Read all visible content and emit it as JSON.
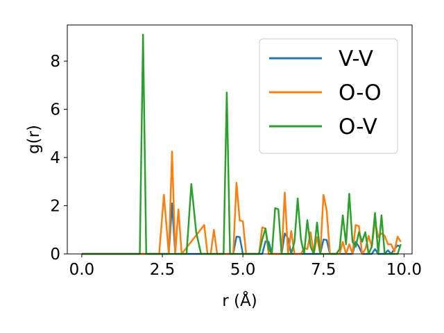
{
  "chart_data": {
    "type": "line",
    "xlabel": "r (Å)",
    "ylabel": "g(r)",
    "xlim": [
      -0.45,
      10.25
    ],
    "ylim": [
      0,
      9.5
    ],
    "xticks": [
      0.0,
      2.5,
      5.0,
      7.5,
      10.0
    ],
    "xtick_labels": [
      "0.0",
      "2.5",
      "5.0",
      "7.5",
      "10.0"
    ],
    "yticks": [
      0,
      2,
      4,
      6,
      8
    ],
    "ytick_labels": [
      "0",
      "2",
      "4",
      "6",
      "8"
    ],
    "grid": false,
    "legend_position": "top-right",
    "series": [
      {
        "name": "V-V",
        "color": "#1f77b4",
        "x": [
          0.0,
          2.7,
          2.8,
          2.9,
          3.0,
          4.7,
          4.8,
          4.9,
          5.0,
          5.6,
          5.7,
          5.8,
          5.9,
          6.2,
          6.3,
          6.4,
          6.5,
          6.6,
          7.4,
          7.5,
          7.6,
          7.7,
          8.4,
          8.5,
          8.6,
          8.7,
          8.8,
          9.0,
          9.1,
          9.2,
          9.4,
          9.5,
          9.6,
          9.7,
          9.8,
          9.9
        ],
        "y": [
          0,
          0,
          2.1,
          0,
          0,
          0,
          0.72,
          0.7,
          0,
          0,
          0.52,
          0.5,
          0,
          0,
          0.85,
          0.65,
          0,
          0,
          0,
          0.6,
          0.58,
          0,
          0,
          0.5,
          0.3,
          0,
          0,
          0,
          0.2,
          0,
          0,
          0.15,
          0,
          0.2,
          0.35,
          0.3
        ]
      },
      {
        "name": "O-O",
        "color": "#ff7f0e",
        "x": [
          0.0,
          2.4,
          2.55,
          2.7,
          2.8,
          2.9,
          3.0,
          3.1,
          3.8,
          3.9,
          4.0,
          4.1,
          4.2,
          4.3,
          4.7,
          4.8,
          4.9,
          5.0,
          5.1,
          5.5,
          5.6,
          5.7,
          5.8,
          6.2,
          6.3,
          6.4,
          6.5,
          6.6,
          6.7,
          6.8,
          6.9,
          7.0,
          7.1,
          7.2,
          7.3,
          7.4,
          7.5,
          7.6,
          7.7,
          8.0,
          8.1,
          8.2,
          8.3,
          8.4,
          8.5,
          8.6,
          8.7,
          8.8,
          8.9,
          9.0,
          9.1,
          9.2,
          9.3,
          9.4,
          9.5,
          9.6,
          9.7,
          9.8,
          9.9
        ],
        "y": [
          0,
          0,
          2.45,
          0,
          4.25,
          0,
          1.85,
          0,
          1.2,
          0,
          0,
          1.0,
          0,
          0,
          0,
          2.95,
          1.4,
          1.35,
          0,
          0,
          1.1,
          1.05,
          0,
          0,
          2.55,
          0,
          0.95,
          0,
          0,
          0,
          0.25,
          0.2,
          0.9,
          0,
          0.7,
          0,
          2.45,
          1.8,
          0,
          0,
          0.5,
          0,
          0.4,
          0,
          1.2,
          1.15,
          0,
          0.2,
          0.75,
          0.3,
          1.35,
          0.7,
          0.85,
          0.75,
          0.4,
          0.4,
          0.1,
          0.72,
          0.5
        ]
      },
      {
        "name": "O-V",
        "color": "#2ca02c",
        "x": [
          0.0,
          1.8,
          1.9,
          2.0,
          3.25,
          3.4,
          3.55,
          3.7,
          4.4,
          4.5,
          4.6,
          5.5,
          5.6,
          5.7,
          5.8,
          5.9,
          6.0,
          6.1,
          6.2,
          6.5,
          6.6,
          6.7,
          6.8,
          6.9,
          7.0,
          7.1,
          7.2,
          7.3,
          7.4,
          7.9,
          8.0,
          8.1,
          8.2,
          8.3,
          8.4,
          8.5,
          8.6,
          8.7,
          8.8,
          8.9,
          9.0,
          9.1,
          9.2,
          9.3,
          9.4,
          9.8,
          9.9
        ],
        "y": [
          0,
          0,
          9.1,
          0,
          0,
          2.9,
          0.9,
          0,
          0,
          6.7,
          0,
          0,
          0.6,
          1.05,
          0.2,
          0,
          1.9,
          1.85,
          0,
          0,
          0.5,
          2.3,
          0.6,
          0,
          1.4,
          0.3,
          0,
          1.3,
          0,
          0,
          0.2,
          1.6,
          0.4,
          2.5,
          0.5,
          0.3,
          0.9,
          0.5,
          0.9,
          0,
          0.3,
          1.7,
          0,
          1.6,
          0,
          0,
          0.4
        ]
      }
    ]
  }
}
